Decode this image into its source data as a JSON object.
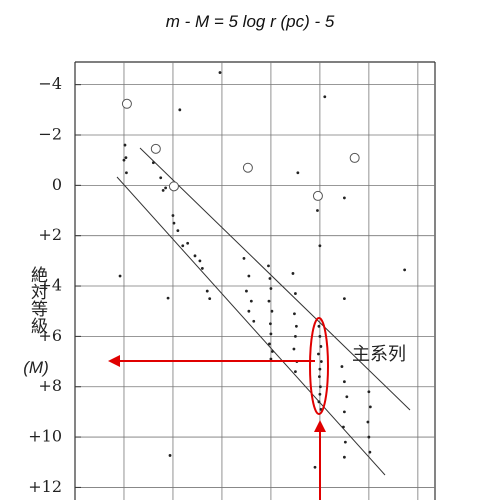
{
  "chart_data": {
    "type": "scatter",
    "title": "m - M  =  5 log r (pc) - 5",
    "y_label": "絶対等級",
    "y_label_symbol": "(M)",
    "annotation": "主系列",
    "y_inverted": true,
    "ylim": [
      -4.9,
      12.5
    ],
    "yticks": [
      {
        "value": -4,
        "label": "−4"
      },
      {
        "value": -2,
        "label": "−2"
      },
      0,
      {
        "value": 2,
        "label": "+2"
      },
      {
        "value": 4,
        "label": "+4"
      },
      {
        "value": 6,
        "label": "+6"
      },
      {
        "value": 8,
        "label": "+8"
      },
      {
        "value": 10,
        "label": "+10"
      },
      {
        "value": 12,
        "label": "+12"
      }
    ],
    "xlim": [
      0,
      7.35
    ],
    "xticks": [
      1,
      2,
      3,
      4,
      5,
      6,
      7
    ],
    "grid": true,
    "series": [
      {
        "marker": "dot",
        "color": "#222222",
        "x": [
          1.02,
          1.04,
          1.0,
          1.05,
          1.6,
          1.75,
          1.85,
          1.8,
          2.0,
          2.02,
          2.1,
          2.2,
          2.3,
          2.45,
          2.55,
          2.6,
          2.7,
          2.75,
          3.45,
          3.55,
          3.5,
          3.6,
          3.55,
          3.65,
          3.95,
          3.98,
          4.0,
          3.96,
          4.02,
          3.99,
          4.0,
          3.97,
          4.03,
          4.0,
          4.45,
          4.5,
          4.48,
          4.52,
          4.5,
          4.47,
          4.53,
          4.5,
          4.95,
          5.0,
          4.98,
          5.0,
          5.02,
          4.97,
          5.03,
          5.0,
          4.99,
          5.01,
          5.0,
          4.98,
          5.02,
          5.5,
          5.45,
          5.5,
          5.55,
          5.5,
          5.48,
          5.52,
          5.5,
          6.0,
          6.03,
          5.98,
          6.0,
          6.02,
          2.96,
          5.1,
          2.14,
          1.9,
          6.73,
          1.94,
          0.92,
          4.55,
          5.5,
          4.9
        ],
        "values": [
          -1.6,
          -1.1,
          -1.0,
          -0.5,
          -0.9,
          -0.3,
          0.1,
          0.2,
          1.2,
          1.5,
          1.8,
          2.4,
          2.3,
          2.8,
          3.0,
          3.3,
          4.2,
          4.5,
          2.9,
          3.6,
          4.2,
          4.6,
          5.0,
          5.4,
          3.2,
          3.7,
          4.1,
          4.6,
          5.0,
          5.5,
          5.9,
          6.3,
          6.6,
          6.9,
          3.5,
          4.3,
          5.1,
          5.6,
          6.0,
          6.5,
          7.0,
          7.4,
          1.0,
          2.4,
          5.6,
          6.0,
          6.4,
          6.7,
          7.0,
          7.3,
          7.6,
          8.0,
          8.3,
          8.6,
          8.9,
          4.5,
          7.2,
          7.8,
          8.4,
          9.0,
          9.6,
          10.2,
          10.8,
          8.2,
          8.8,
          9.4,
          10.0,
          10.6,
          -4.48,
          -3.52,
          -3.0,
          4.48,
          3.36,
          10.73,
          3.6,
          -0.5,
          0.5,
          11.2
        ]
      },
      {
        "marker": "circle",
        "color": "#555555",
        "x": [
          1.06,
          1.65,
          2.02,
          3.53,
          4.96,
          5.71
        ],
        "values": [
          -3.24,
          -1.45,
          0.04,
          -0.7,
          0.42,
          -1.09
        ]
      }
    ]
  }
}
